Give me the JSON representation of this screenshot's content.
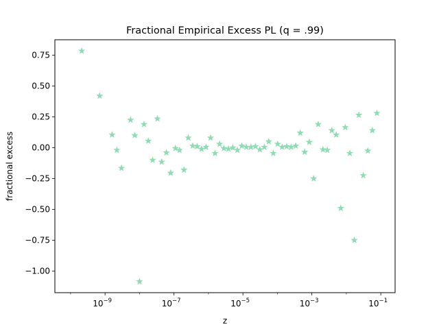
{
  "chart_data": {
    "type": "scatter",
    "title": "Fractional Empirical Excess PL (q = .99)",
    "xlabel": "z",
    "ylabel": "fractional excess",
    "x_scale": "log",
    "xlim": [
      3.5e-11,
      0.26
    ],
    "ylim": [
      -1.175,
      0.875
    ],
    "grid": false,
    "legend": "none",
    "marker": "star",
    "marker_color": "#8fdcb4",
    "x_ticks": [
      {
        "value": 1e-09,
        "label": "10",
        "exp": "−9"
      },
      {
        "value": 1e-07,
        "label": "10",
        "exp": "−7"
      },
      {
        "value": 1e-05,
        "label": "10",
        "exp": "−5"
      },
      {
        "value": 0.001,
        "label": "10",
        "exp": "−3"
      },
      {
        "value": 0.1,
        "label": "10",
        "exp": "−1"
      }
    ],
    "y_ticks": [
      {
        "value": 0.75,
        "label": "0.75"
      },
      {
        "value": 0.5,
        "label": "0.50"
      },
      {
        "value": 0.25,
        "label": "0.25"
      },
      {
        "value": 0.0,
        "label": "0.00"
      },
      {
        "value": -0.25,
        "label": "−0.25"
      },
      {
        "value": -0.5,
        "label": "−0.50"
      },
      {
        "value": -0.75,
        "label": "−0.75"
      },
      {
        "value": -1.0,
        "label": "−1.00"
      }
    ],
    "points": [
      {
        "x": 2.1e-10,
        "y": 0.785
      },
      {
        "x": 7e-10,
        "y": 0.42
      },
      {
        "x": 1.6e-09,
        "y": 0.105
      },
      {
        "x": 2.2e-09,
        "y": -0.02
      },
      {
        "x": 3e-09,
        "y": -0.165
      },
      {
        "x": 5.5e-09,
        "y": 0.225
      },
      {
        "x": 7.3e-09,
        "y": 0.1
      },
      {
        "x": 1e-08,
        "y": -1.085
      },
      {
        "x": 1.35e-08,
        "y": 0.19
      },
      {
        "x": 1.8e-08,
        "y": 0.055
      },
      {
        "x": 2.4e-08,
        "y": -0.1
      },
      {
        "x": 3.3e-08,
        "y": 0.235
      },
      {
        "x": 4.4e-08,
        "y": -0.115
      },
      {
        "x": 6e-08,
        "y": -0.04
      },
      {
        "x": 8e-08,
        "y": -0.205
      },
      {
        "x": 1.1e-07,
        "y": -0.005
      },
      {
        "x": 1.45e-07,
        "y": -0.02
      },
      {
        "x": 1.95e-07,
        "y": -0.18
      },
      {
        "x": 2.6e-07,
        "y": 0.08
      },
      {
        "x": 3.5e-07,
        "y": 0.015
      },
      {
        "x": 4.7e-07,
        "y": 0.01
      },
      {
        "x": 6.3e-07,
        "y": -0.01
      },
      {
        "x": 8.5e-07,
        "y": 0.005
      },
      {
        "x": 1.15e-06,
        "y": 0.08
      },
      {
        "x": 1.55e-06,
        "y": -0.045
      },
      {
        "x": 2.1e-06,
        "y": 0.03
      },
      {
        "x": 2.8e-06,
        "y": -0.005
      },
      {
        "x": 3.8e-06,
        "y": -0.01
      },
      {
        "x": 5.1e-06,
        "y": 0.0
      },
      {
        "x": 6.9e-06,
        "y": -0.02
      },
      {
        "x": 9.3e-06,
        "y": 0.015
      },
      {
        "x": 1.25e-05,
        "y": 0.005
      },
      {
        "x": 1.7e-05,
        "y": 0.005
      },
      {
        "x": 2.3e-05,
        "y": 0.01
      },
      {
        "x": 3.1e-05,
        "y": -0.015
      },
      {
        "x": 4.2e-05,
        "y": 0.005
      },
      {
        "x": 5.6e-05,
        "y": 0.05
      },
      {
        "x": 7.6e-05,
        "y": -0.045
      },
      {
        "x": 0.000102,
        "y": 0.03
      },
      {
        "x": 0.000138,
        "y": 0.005
      },
      {
        "x": 0.000186,
        "y": 0.01
      },
      {
        "x": 0.00025,
        "y": 0.005
      },
      {
        "x": 0.00034,
        "y": 0.015
      },
      {
        "x": 0.00046,
        "y": 0.12
      },
      {
        "x": 0.00062,
        "y": -0.035
      },
      {
        "x": 0.00084,
        "y": 0.045
      },
      {
        "x": 0.00113,
        "y": -0.25
      },
      {
        "x": 0.00153,
        "y": 0.19
      },
      {
        "x": 0.0021,
        "y": -0.015
      },
      {
        "x": 0.0028,
        "y": -0.02
      },
      {
        "x": 0.0038,
        "y": 0.14
      },
      {
        "x": 0.0051,
        "y": 0.105
      },
      {
        "x": 0.0069,
        "y": -0.49
      },
      {
        "x": 0.0093,
        "y": 0.165
      },
      {
        "x": 0.0126,
        "y": -0.045
      },
      {
        "x": 0.017,
        "y": -0.75
      },
      {
        "x": 0.023,
        "y": 0.265
      },
      {
        "x": 0.031,
        "y": -0.225
      },
      {
        "x": 0.042,
        "y": -0.025
      },
      {
        "x": 0.057,
        "y": 0.14
      },
      {
        "x": 0.077,
        "y": 0.28
      }
    ]
  }
}
